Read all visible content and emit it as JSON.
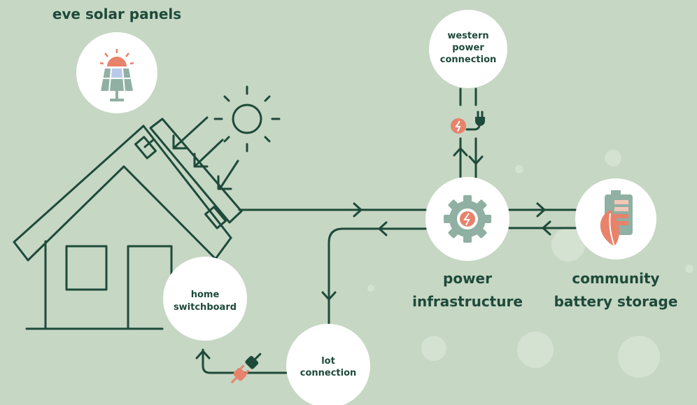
{
  "title": "eve solar panels",
  "nodes": [
    {
      "label_lines": [
        "western",
        "power",
        "connection"
      ]
    },
    {
      "label_lines": [
        "home",
        "switchboard"
      ]
    },
    {
      "label_lines": [
        "lot",
        "connection"
      ]
    },
    {
      "label_lines": [
        "power",
        "infrastructure"
      ]
    },
    {
      "label_lines": [
        "community",
        "battery storage"
      ]
    }
  ]
}
